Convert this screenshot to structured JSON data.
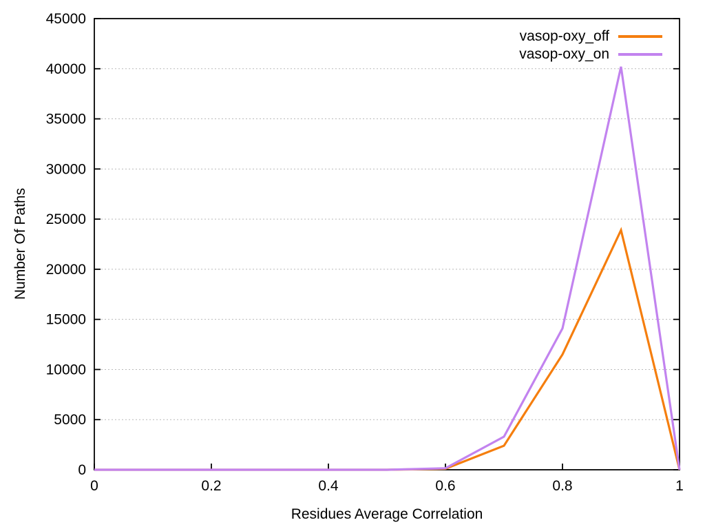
{
  "chart_data": {
    "type": "line",
    "title": "",
    "xlabel": "Residues Average Correlation",
    "ylabel": "Number Of Paths",
    "x": [
      0,
      0.1,
      0.2,
      0.3,
      0.4,
      0.5,
      0.6,
      0.7,
      0.8,
      0.9,
      1.0
    ],
    "series": [
      {
        "name": "vasop-oxy_off",
        "color": "#f57e0e",
        "values": [
          0,
          0,
          0,
          0,
          0,
          0,
          100,
          2400,
          11500,
          23900,
          0
        ]
      },
      {
        "name": "vasop-oxy_on",
        "color": "#c283ef",
        "values": [
          0,
          0,
          0,
          0,
          0,
          0,
          150,
          3300,
          14100,
          40200,
          0
        ]
      }
    ],
    "xlim": [
      0,
      1
    ],
    "ylim": [
      0,
      45000
    ],
    "xticks": [
      0,
      0.2,
      0.4,
      0.6,
      0.8,
      1
    ],
    "xtick_labels": [
      "0",
      "0.2",
      "0.4",
      "0.6",
      "0.8",
      "1"
    ],
    "yticks": [
      0,
      5000,
      10000,
      15000,
      20000,
      25000,
      30000,
      35000,
      40000,
      45000
    ],
    "ytick_labels": [
      "0",
      "5000",
      "10000",
      "15000",
      "20000",
      "25000",
      "30000",
      "35000",
      "40000",
      "45000"
    ],
    "grid": "horizontal-dotted",
    "grid_color": "#b8b8b8",
    "border_color": "#000000",
    "legend_position": "top-right-inside"
  }
}
